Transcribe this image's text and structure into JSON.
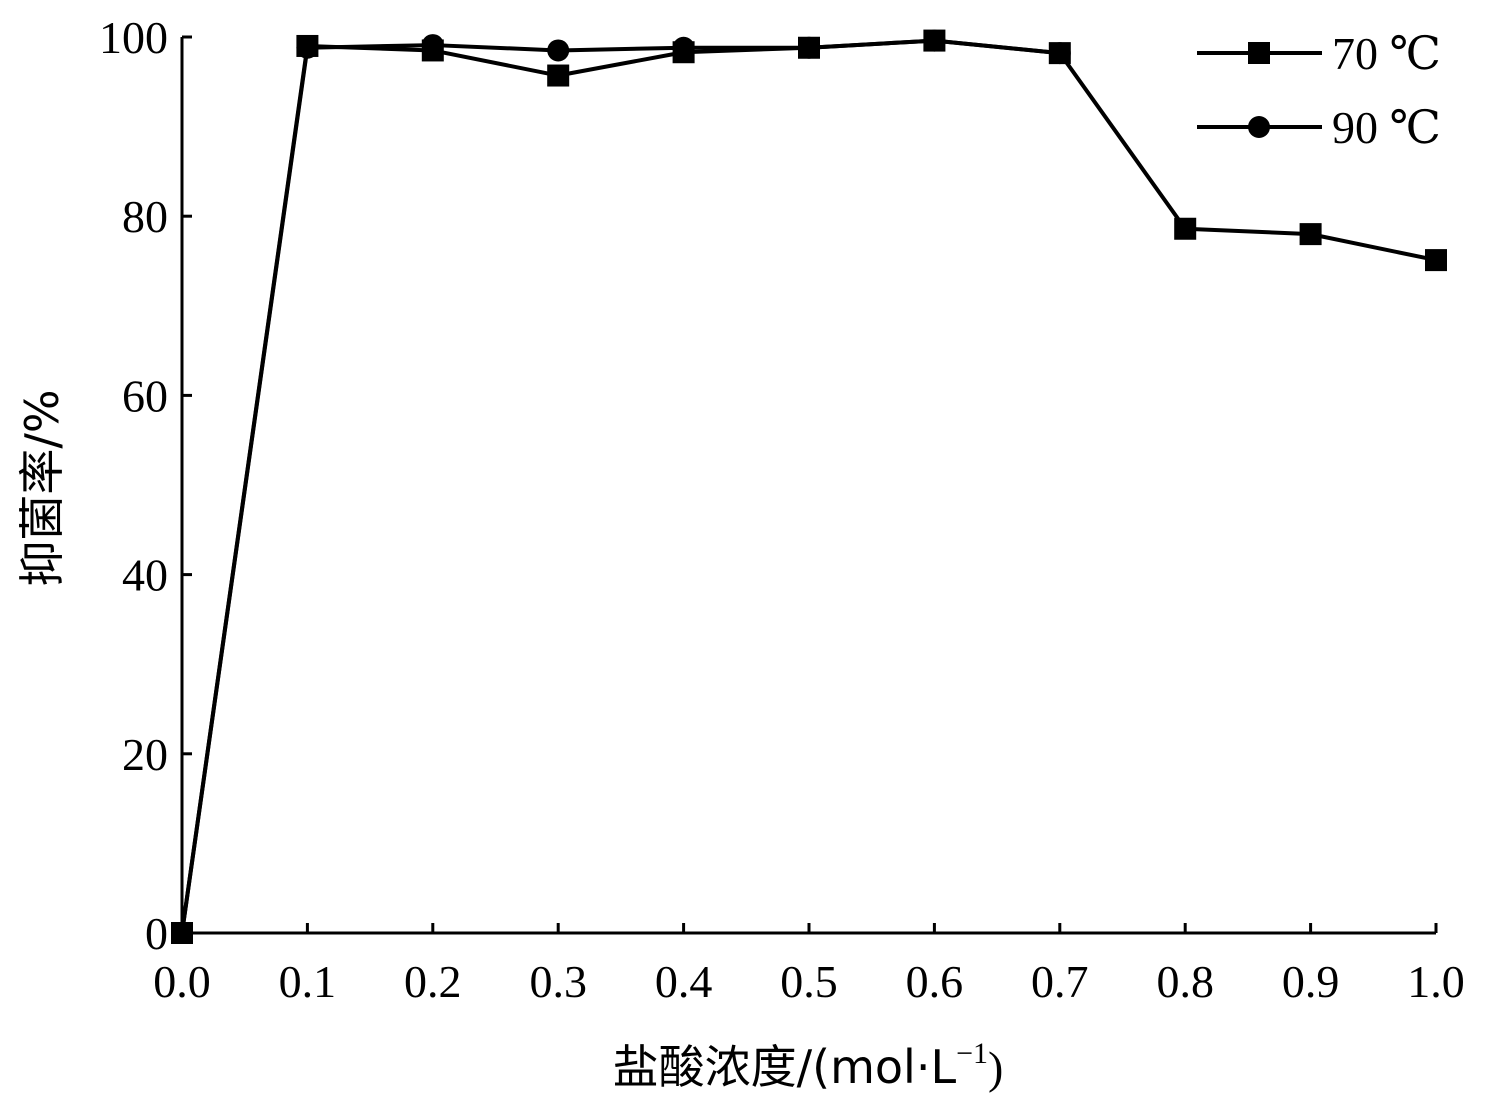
{
  "chart_data": {
    "type": "line",
    "xlabel": {
      "main": "盐酸浓度/(mol·L",
      "superscript": "−1",
      "close": ")"
    },
    "ylabel": "抑菌率/%",
    "xlim": [
      0.0,
      1.0
    ],
    "ylim": [
      0,
      100
    ],
    "x_ticks": [
      "0.0",
      "0.1",
      "0.2",
      "0.3",
      "0.4",
      "0.5",
      "0.6",
      "0.7",
      "0.8",
      "0.9",
      "1.0"
    ],
    "y_ticks": [
      "0",
      "20",
      "40",
      "60",
      "80",
      "100"
    ],
    "grid": false,
    "legend_position": "top-right",
    "series": [
      {
        "name": "70 ℃",
        "marker": "square",
        "color": "#000000",
        "x": [
          0.0,
          0.1,
          0.2,
          0.3,
          0.4,
          0.5,
          0.6,
          0.7,
          0.8,
          0.9,
          1.0
        ],
        "y": [
          0,
          99.0,
          98.5,
          95.7,
          98.3,
          98.8,
          99.6,
          98.2,
          78.6,
          78.0,
          75.1
        ]
      },
      {
        "name": "90 ℃",
        "marker": "circle",
        "color": "#000000",
        "x": [
          0.0,
          0.1,
          0.2,
          0.3,
          0.4,
          0.5,
          0.6,
          0.7
        ],
        "y": [
          0,
          98.8,
          99.1,
          98.5,
          98.8,
          98.8,
          99.6,
          98.2
        ]
      }
    ]
  }
}
